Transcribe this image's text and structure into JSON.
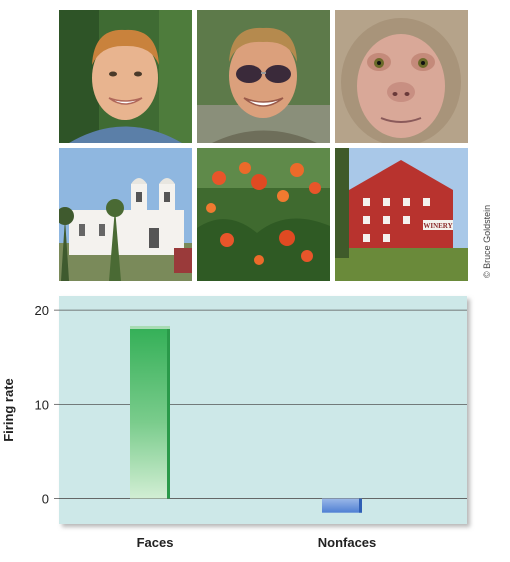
{
  "photo_grid": {
    "images": [
      {
        "subject": "man-face-1"
      },
      {
        "subject": "man-face-sunglasses"
      },
      {
        "subject": "monkey-face"
      },
      {
        "subject": "mission-church"
      },
      {
        "subject": "orange-flowers"
      },
      {
        "subject": "red-barn-winery",
        "sign_text": "WINERY"
      }
    ],
    "credit": "© Bruce Goldstein"
  },
  "colors": {
    "plot_background": "#cde8e8",
    "faces_bar": "#3db55e",
    "nonfaces_bar": "#4f7fd3"
  },
  "chart_data": {
    "type": "bar",
    "categories": [
      "Faces",
      "Nonfaces"
    ],
    "values": [
      18,
      -1.5
    ],
    "ylabel": "Firing rate",
    "xlabel": "",
    "ylim": [
      -2.7,
      21.5
    ],
    "yticks": [
      0,
      10,
      20
    ],
    "grid": true,
    "legend": "none"
  }
}
